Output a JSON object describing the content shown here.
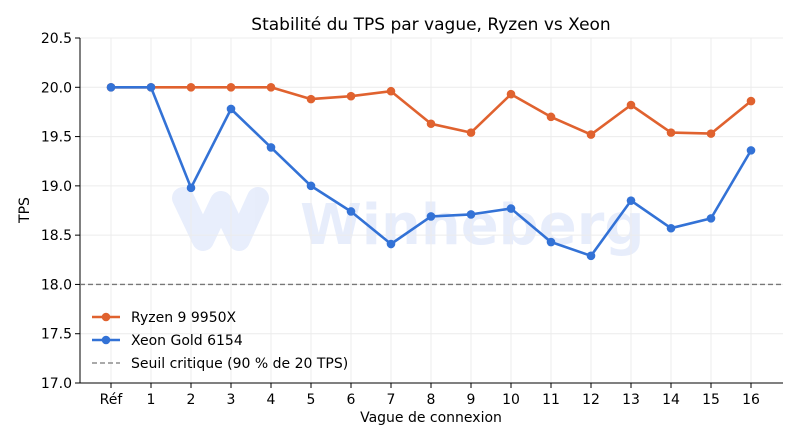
{
  "watermark": "Winheberg",
  "chart_data": {
    "type": "line",
    "title": "Stabilité du TPS par vague, Ryzen vs Xeon",
    "xlabel": "Vague de connexion",
    "ylabel": "TPS",
    "categories": [
      "Réf",
      "1",
      "2",
      "3",
      "4",
      "5",
      "6",
      "7",
      "8",
      "9",
      "10",
      "11",
      "12",
      "13",
      "14",
      "15",
      "16"
    ],
    "ylim": [
      17.0,
      20.5
    ],
    "yticks": [
      "17.0",
      "17.5",
      "18.0",
      "18.5",
      "19.0",
      "19.5",
      "20.0",
      "20.5"
    ],
    "grid": true,
    "legend_position": "bottom-left",
    "series": [
      {
        "name": "Ryzen 9 9950X",
        "color": "#e0622f",
        "values": [
          20.0,
          20.0,
          20.0,
          20.0,
          20.0,
          19.88,
          19.91,
          19.96,
          19.63,
          19.54,
          19.93,
          19.7,
          19.52,
          19.82,
          19.54,
          19.53,
          19.86
        ]
      },
      {
        "name": "Xeon Gold 6154",
        "color": "#3372d6",
        "values": [
          20.0,
          20.0,
          18.98,
          19.78,
          19.39,
          19.0,
          18.74,
          18.41,
          18.69,
          18.71,
          18.77,
          18.43,
          18.29,
          18.85,
          18.57,
          18.67,
          19.36
        ]
      }
    ],
    "reference_line": {
      "name": "Seuil critique (90 % de 20 TPS)",
      "value": 18.0,
      "color": "#777777",
      "style": "dashed"
    }
  }
}
